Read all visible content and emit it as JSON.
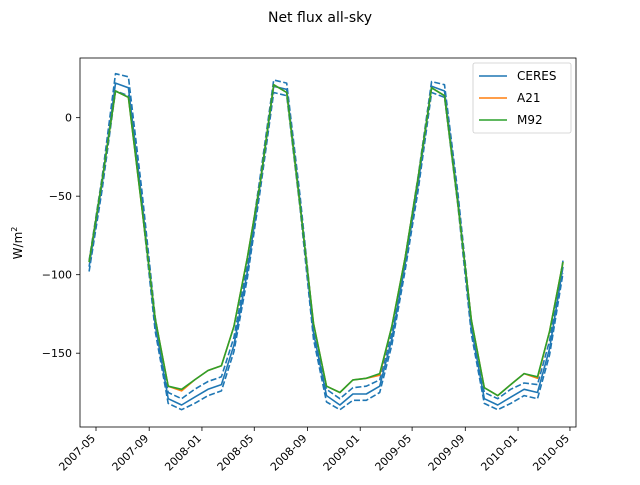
{
  "chart_data": {
    "type": "line",
    "title": "Net flux all-sky",
    "xlabel": "",
    "ylabel": "W/m",
    "ylabel_superscript": "2",
    "xlim": [
      "2007-03-25",
      "2010-05-15"
    ],
    "ylim": [
      -197,
      38
    ],
    "x_ticks": [
      "2007-05",
      "2007-09",
      "2008-01",
      "2008-05",
      "2008-09",
      "2009-01",
      "2009-05",
      "2009-09",
      "2010-01",
      "2010-05"
    ],
    "y_ticks": [
      0,
      -50,
      -100,
      -150
    ],
    "legend": {
      "position": "top-right",
      "entries": [
        "CERES",
        "A21",
        "M92"
      ]
    },
    "colors": {
      "CERES": "#1f77b4",
      "A21": "#ff7f0e",
      "M92": "#2ca02c",
      "axis": "#000000"
    },
    "x": [
      "2007-04-15",
      "2007-05-15",
      "2007-06-15",
      "2007-07-15",
      "2007-08-15",
      "2007-09-15",
      "2007-10-15",
      "2007-11-15",
      "2007-12-15",
      "2008-01-15",
      "2008-02-15",
      "2008-03-15",
      "2008-04-15",
      "2008-05-15",
      "2008-06-15",
      "2008-07-15",
      "2008-08-15",
      "2008-09-15",
      "2008-10-15",
      "2008-11-15",
      "2008-12-15",
      "2009-01-15",
      "2009-02-15",
      "2009-03-15",
      "2009-04-15",
      "2009-05-15",
      "2009-06-15",
      "2009-07-15",
      "2009-08-15",
      "2009-09-15",
      "2009-10-15",
      "2009-11-15",
      "2009-12-15",
      "2010-01-15",
      "2010-02-15",
      "2010-03-15",
      "2010-04-15"
    ],
    "series": [
      {
        "name": "CERES",
        "style": "solid",
        "values": [
          -95,
          -42,
          22,
          19,
          -52,
          -132,
          -179,
          -183,
          -178,
          -173,
          -170,
          -145,
          -98,
          -42,
          20,
          18,
          -54,
          -137,
          -177,
          -183,
          -176,
          -176,
          -171,
          -141,
          -93,
          -42,
          20,
          17,
          -52,
          -134,
          -179,
          -183,
          -178,
          -173,
          -175,
          -147,
          -95
        ]
      },
      {
        "name": "CERES upper",
        "style": "dashed",
        "values": [
          -91,
          -38,
          28,
          26,
          -46,
          -127,
          -175,
          -179,
          -173,
          -168,
          -165,
          -140,
          -93,
          -37,
          24,
          22,
          -50,
          -133,
          -173,
          -179,
          -172,
          -171,
          -167,
          -137,
          -89,
          -37,
          23,
          21,
          -48,
          -130,
          -175,
          -179,
          -173,
          -169,
          -170,
          -142,
          -91
        ]
      },
      {
        "name": "CERES lower",
        "style": "dashed",
        "values": [
          -98,
          -46,
          17,
          14,
          -56,
          -136,
          -182,
          -186,
          -182,
          -177,
          -174,
          -149,
          -102,
          -46,
          16,
          14,
          -58,
          -141,
          -181,
          -186,
          -180,
          -180,
          -175,
          -145,
          -97,
          -46,
          16,
          13,
          -56,
          -138,
          -182,
          -186,
          -182,
          -177,
          -179,
          -151,
          -99
        ]
      },
      {
        "name": "A21",
        "style": "solid",
        "values": [
          -92,
          -40,
          17,
          13,
          -57,
          -128,
          -171,
          -174,
          -167,
          -161,
          -158,
          -133,
          -89,
          -41,
          21,
          16,
          -56,
          -131,
          -171,
          -175,
          -167,
          -166,
          -164,
          -133,
          -89,
          -38,
          19,
          14,
          -55,
          -129,
          -172,
          -177,
          -170,
          -163,
          -166,
          -136,
          -92
        ]
      },
      {
        "name": "M92",
        "style": "solid",
        "values": [
          -92,
          -40,
          17,
          13,
          -57,
          -128,
          -171,
          -173,
          -167,
          -161,
          -158,
          -133,
          -89,
          -41,
          21,
          16,
          -56,
          -131,
          -171,
          -175,
          -167,
          -166,
          -163,
          -133,
          -89,
          -38,
          19,
          14,
          -55,
          -129,
          -172,
          -177,
          -170,
          -163,
          -165,
          -136,
          -92
        ]
      }
    ]
  }
}
